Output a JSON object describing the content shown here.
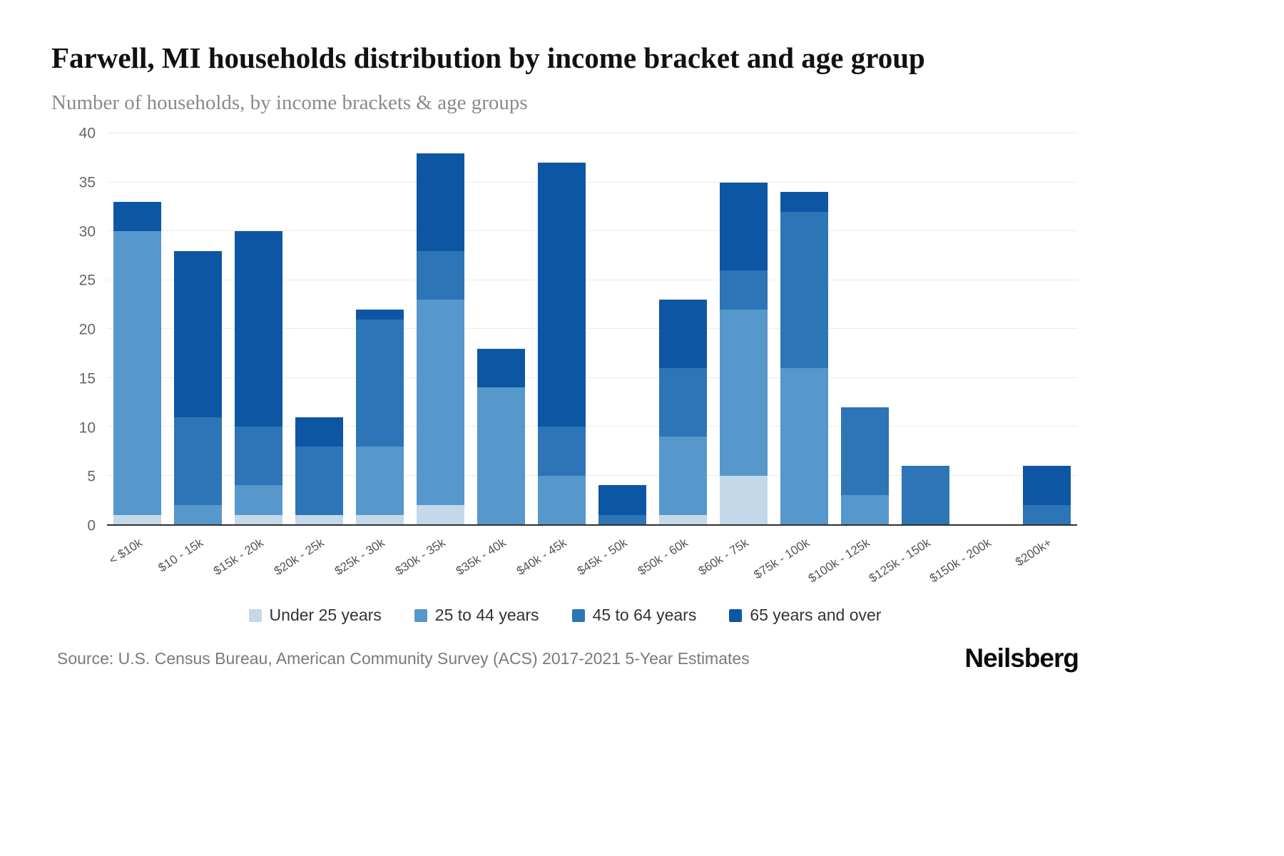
{
  "title": "Farwell, MI households distribution by income bracket and age group",
  "subtitle": "Number of households, by income brackets & age groups",
  "source": "Source: U.S. Census Bureau, American Community Survey (ACS) 2017-2021 5-Year Estimates",
  "logo": "Neilsberg",
  "chart_data": {
    "type": "bar",
    "stacked": true,
    "title": "Farwell, MI households distribution by income bracket and age group",
    "xlabel": "",
    "ylabel": "Number of households",
    "ylim": [
      0,
      40
    ],
    "yticks": [
      0,
      5,
      10,
      15,
      20,
      25,
      30,
      35,
      40
    ],
    "grid": true,
    "legend_position": "bottom",
    "categories": [
      "< $10k",
      "$10 - 15k",
      "$15k - 20k",
      "$20k - 25k",
      "$25k - 30k",
      "$30k - 35k",
      "$35k - 40k",
      "$40k - 45k",
      "$45k - 50k",
      "$50k - 60k",
      "$60k - 75k",
      "$75k - 100k",
      "$100k - 125k",
      "$125k - 150k",
      "$150k - 200k",
      "$200k+"
    ],
    "series": [
      {
        "name": "Under 25 years",
        "color": "#c3d9ea",
        "values": [
          1,
          0,
          1,
          1,
          1,
          2,
          0,
          0,
          0,
          1,
          5,
          0,
          0,
          0,
          0,
          0
        ]
      },
      {
        "name": "25 to 44 years",
        "color": "#5697cc",
        "values": [
          29,
          2,
          3,
          0,
          7,
          21,
          14,
          5,
          0,
          8,
          17,
          16,
          3,
          0,
          0,
          0
        ]
      },
      {
        "name": "45 to 64 years",
        "color": "#2d75b6",
        "values": [
          0,
          9,
          6,
          7,
          13,
          5,
          0,
          5,
          1,
          7,
          4,
          16,
          9,
          6,
          0,
          2
        ]
      },
      {
        "name": "65 years and over",
        "color": "#0d56a4",
        "values": [
          3,
          17,
          20,
          3,
          1,
          10,
          4,
          27,
          3,
          7,
          9,
          2,
          0,
          0,
          0,
          4
        ]
      }
    ],
    "totals": [
      33,
      28,
      30,
      11,
      22,
      38,
      18,
      37,
      4,
      23,
      35,
      34,
      12,
      6,
      0,
      6
    ]
  }
}
